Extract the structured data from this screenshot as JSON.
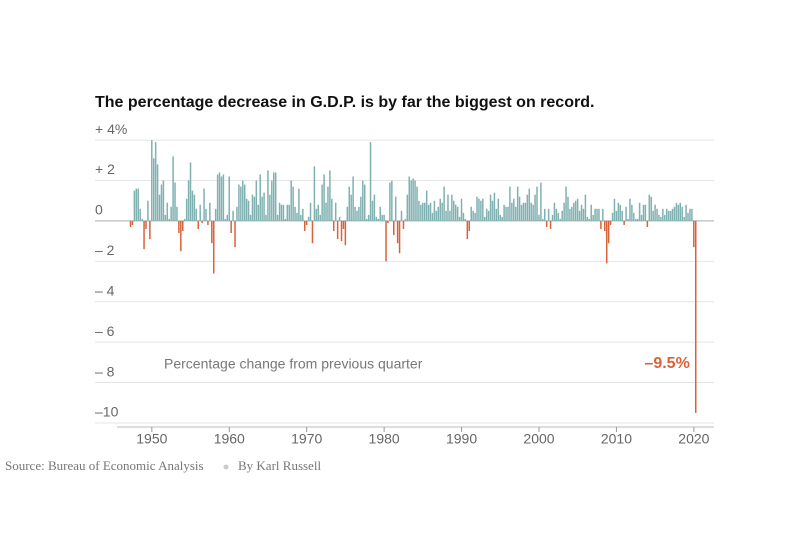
{
  "chart_data": {
    "type": "bar",
    "title": "The percentage decrease in G.D.P. is by far the biggest on record.",
    "annotations": [
      {
        "text": "Percentage change from previous quarter"
      }
    ],
    "source": "Source: Bureau of Economic Analysis",
    "byline": "By Karl Russell",
    "colors": {
      "positive": "#80b1b1",
      "negative": "#d8623a"
    },
    "xlim": [
      1945.5,
      2022.6
    ],
    "xticks": [
      1950,
      1960,
      1970,
      1980,
      1990,
      2000,
      2010,
      2020
    ],
    "ylim": [
      -10.2,
      4.6
    ],
    "yticks": [
      {
        "value": 4,
        "label": "+ 4%"
      },
      {
        "value": 2,
        "label": "+ 2"
      },
      0,
      {
        "value": -2,
        "label": "– 2"
      },
      {
        "value": -4,
        "label": "– 4"
      },
      {
        "value": -6,
        "label": "– 6"
      },
      {
        "value": -8,
        "label": "– 8"
      },
      {
        "value": -10,
        "label": "–10"
      }
    ],
    "grid": true,
    "x": [
      1947.25,
      1947.5,
      1947.75,
      1948,
      1948.25,
      1948.5,
      1948.75,
      1949,
      1949.25,
      1949.5,
      1949.75,
      1950,
      1950.25,
      1950.5,
      1950.75,
      1951,
      1951.25,
      1951.5,
      1951.75,
      1952,
      1952.25,
      1952.5,
      1952.75,
      1953,
      1953.25,
      1953.5,
      1953.75,
      1954,
      1954.25,
      1954.5,
      1954.75,
      1955,
      1955.25,
      1955.5,
      1955.75,
      1956,
      1956.25,
      1956.5,
      1956.75,
      1957,
      1957.25,
      1957.5,
      1957.75,
      1958,
      1958.25,
      1958.5,
      1958.75,
      1959,
      1959.25,
      1959.5,
      1959.75,
      1960,
      1960.25,
      1960.5,
      1960.75,
      1961,
      1961.25,
      1961.5,
      1961.75,
      1962,
      1962.25,
      1962.5,
      1962.75,
      1963,
      1963.25,
      1963.5,
      1963.75,
      1964,
      1964.25,
      1964.5,
      1964.75,
      1965,
      1965.25,
      1965.5,
      1965.75,
      1966,
      1966.25,
      1966.5,
      1966.75,
      1967,
      1967.25,
      1967.5,
      1967.75,
      1968,
      1968.25,
      1968.5,
      1968.75,
      1969,
      1969.25,
      1969.5,
      1969.75,
      1970,
      1970.25,
      1970.5,
      1970.75,
      1971,
      1971.25,
      1971.5,
      1971.75,
      1972,
      1972.25,
      1972.5,
      1972.75,
      1973,
      1973.25,
      1973.5,
      1973.75,
      1974,
      1974.25,
      1974.5,
      1974.75,
      1975,
      1975.25,
      1975.5,
      1975.75,
      1976,
      1976.25,
      1976.5,
      1976.75,
      1977,
      1977.25,
      1977.5,
      1977.75,
      1978,
      1978.25,
      1978.5,
      1978.75,
      1979,
      1979.25,
      1979.5,
      1979.75,
      1980,
      1980.25,
      1980.5,
      1980.75,
      1981,
      1981.25,
      1981.5,
      1981.75,
      1982,
      1982.25,
      1982.5,
      1982.75,
      1983,
      1983.25,
      1983.5,
      1983.75,
      1984,
      1984.25,
      1984.5,
      1984.75,
      1985,
      1985.25,
      1985.5,
      1985.75,
      1986,
      1986.25,
      1986.5,
      1986.75,
      1987,
      1987.25,
      1987.5,
      1987.75,
      1988,
      1988.25,
      1988.5,
      1988.75,
      1989,
      1989.25,
      1989.5,
      1989.75,
      1990,
      1990.25,
      1990.5,
      1990.75,
      1991,
      1991.25,
      1991.5,
      1991.75,
      1992,
      1992.25,
      1992.5,
      1992.75,
      1993,
      1993.25,
      1993.5,
      1993.75,
      1994,
      1994.25,
      1994.5,
      1994.75,
      1995,
      1995.25,
      1995.5,
      1995.75,
      1996,
      1996.25,
      1996.5,
      1996.75,
      1997,
      1997.25,
      1997.5,
      1997.75,
      1998,
      1998.25,
      1998.5,
      1998.75,
      1999,
      1999.25,
      1999.5,
      1999.75,
      2000,
      2000.25,
      2000.5,
      2000.75,
      2001,
      2001.25,
      2001.5,
      2001.75,
      2002,
      2002.25,
      2002.5,
      2002.75,
      2003,
      2003.25,
      2003.5,
      2003.75,
      2004,
      2004.25,
      2004.5,
      2004.75,
      2005,
      2005.25,
      2005.5,
      2005.75,
      2006,
      2006.25,
      2006.5,
      2006.75,
      2007,
      2007.25,
      2007.5,
      2007.75,
      2008,
      2008.25,
      2008.5,
      2008.75,
      2009,
      2009.25,
      2009.5,
      2009.75,
      2010,
      2010.25,
      2010.5,
      2010.75,
      2011,
      2011.25,
      2011.5,
      2011.75,
      2012,
      2012.25,
      2012.5,
      2012.75,
      2013,
      2013.25,
      2013.5,
      2013.75,
      2014,
      2014.25,
      2014.5,
      2014.75,
      2015,
      2015.25,
      2015.5,
      2015.75,
      2016,
      2016.25,
      2016.5,
      2016.75,
      2017,
      2017.25,
      2017.5,
      2017.75,
      2018,
      2018.25,
      2018.5,
      2018.75,
      2019,
      2019.25,
      2019.5,
      2019.75,
      2020,
      2020.25
    ],
    "values": [
      -0.3,
      -0.2,
      1.5,
      1.6,
      1.6,
      0.6,
      0.1,
      -1.4,
      -0.4,
      1.0,
      -0.9,
      4.0,
      3.1,
      3.9,
      2.8,
      1.3,
      1.8,
      2.0,
      0.3,
      0.9,
      0.1,
      0.7,
      3.2,
      1.9,
      0.7,
      -0.6,
      -1.5,
      -0.5,
      0.1,
      1.1,
      2.0,
      2.9,
      1.5,
      1.3,
      0.6,
      -0.4,
      0.8,
      -0.1,
      1.6,
      0.6,
      -0.2,
      0.9,
      -1.1,
      -2.6,
      0.6,
      2.3,
      2.4,
      2.2,
      2.3,
      0.1,
      0.3,
      2.2,
      -0.6,
      0.5,
      -1.3,
      0.7,
      1.8,
      1.7,
      2.0,
      1.8,
      1.1,
      1.0,
      0.3,
      1.3,
      1.2,
      2.0,
      0.8,
      2.3,
      1.2,
      1.4,
      0.3,
      2.5,
      1.3,
      2.0,
      2.4,
      2.4,
      0.3,
      0.9,
      0.8,
      0.8,
      0.1,
      0.8,
      0.8,
      2.0,
      1.7,
      0.7,
      0.4,
      1.6,
      0.3,
      0.6,
      -0.5,
      -0.2,
      0.2,
      0.9,
      -1.1,
      2.7,
      0.6,
      0.8,
      0.3,
      1.8,
      2.3,
      0.9,
      1.7,
      2.5,
      1.1,
      -0.5,
      0.9,
      -0.9,
      0.2,
      -1.0,
      -0.4,
      -1.2,
      0.7,
      1.7,
      1.3,
      2.2,
      0.7,
      0.5,
      0.7,
      1.2,
      2.0,
      1.8,
      0.1,
      0.3,
      3.9,
      1.0,
      1.3,
      0.2,
      0.1,
      0.7,
      0.3,
      0.3,
      -2.0,
      -0.1,
      1.9,
      2.0,
      -0.7,
      1.2,
      -1.1,
      -1.6,
      0.5,
      -0.4,
      0.1,
      1.3,
      2.2,
      2.0,
      2.1,
      2.0,
      1.7,
      1.0,
      0.8,
      0.9,
      0.9,
      1.5,
      0.8,
      0.9,
      0.4,
      1.0,
      0.5,
      0.7,
      1.1,
      0.9,
      1.7,
      0.5,
      1.3,
      0.5,
      1.3,
      1.0,
      0.8,
      0.7,
      0.2,
      1.1,
      0.4,
      0.1,
      -0.9,
      -0.5,
      0.7,
      0.5,
      0.4,
      1.2,
      1.1,
      1.0,
      1.1,
      0.2,
      0.6,
      0.5,
      1.3,
      1.0,
      1.4,
      0.6,
      1.1,
      0.3,
      0.2,
      0.8,
      0.7,
      0.7,
      1.7,
      0.9,
      1.1,
      0.7,
      1.7,
      1.2,
      0.8,
      0.9,
      0.9,
      1.3,
      1.6,
      0.9,
      0.8,
      1.3,
      1.7,
      0.3,
      1.9,
      0.1,
      0.6,
      -0.3,
      0.6,
      -0.4,
      0.3,
      0.9,
      0.6,
      0.4,
      0.1,
      0.5,
      0.9,
      1.7,
      1.2,
      0.6,
      0.7,
      0.9,
      1.0,
      1.1,
      0.5,
      0.8,
      0.6,
      1.3,
      0.2,
      0.1,
      0.8,
      0.3,
      0.6,
      0.6,
      0.6,
      -0.4,
      0.6,
      -0.5,
      -2.1,
      -1.1,
      -0.2,
      0.4,
      1.1,
      0.5,
      0.9,
      0.8,
      0.5,
      -0.2,
      0.7,
      0.1,
      1.1,
      0.8,
      0.4,
      0.1,
      0.1,
      0.9,
      0.3,
      0.8,
      0.8,
      -0.3,
      1.3,
      1.2,
      0.5,
      0.8,
      0.6,
      0.3,
      0.2,
      0.6,
      0.3,
      0.6,
      0.5,
      0.5,
      0.6,
      0.7,
      0.9,
      0.8,
      0.9,
      0.7,
      0.2,
      0.8,
      0.4,
      0.6,
      0.6,
      -1.3,
      -9.5
    ],
    "value_labels": {
      "292": "–9.5%"
    }
  }
}
